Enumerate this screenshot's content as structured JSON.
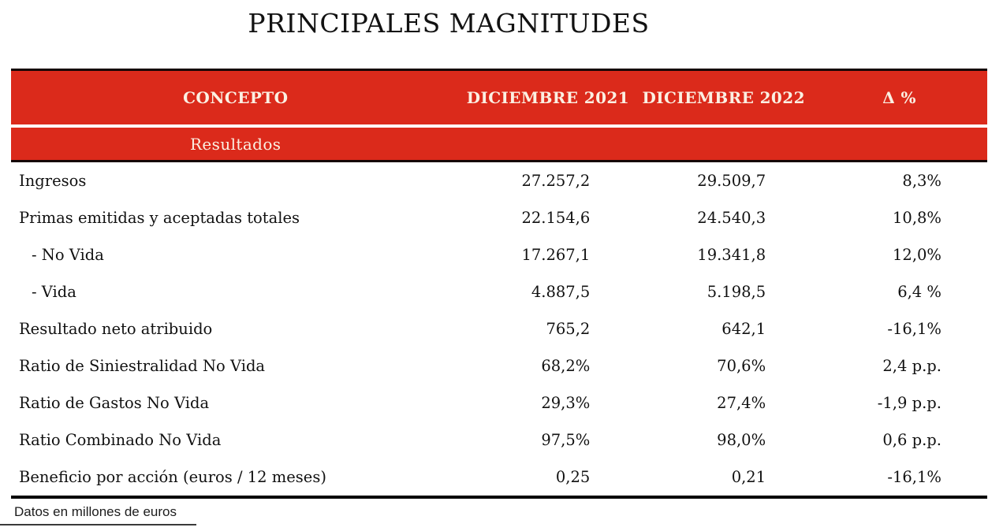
{
  "title": "PRINCIPALES MAGNITUDES",
  "colors": {
    "brand_red": "#DB2A1B",
    "header_text": "#FBF0E3",
    "border_black": "#000000"
  },
  "table": {
    "headers": {
      "concepto": "CONCEPTO",
      "dic2021": "DICIEMBRE 2021",
      "dic2022": "DICIEMBRE 2022",
      "delta": "Δ %"
    },
    "section_label": "Resultados",
    "rows": [
      {
        "concepto": "Ingresos",
        "indent": false,
        "dic2021": "27.257,2",
        "dic2022": "29.509,7",
        "delta": "8,3%"
      },
      {
        "concepto": "Primas emitidas y aceptadas totales",
        "indent": false,
        "dic2021": "22.154,6",
        "dic2022": "24.540,3",
        "delta": "10,8%"
      },
      {
        "concepto": "- No Vida",
        "indent": true,
        "dic2021": "17.267,1",
        "dic2022": "19.341,8",
        "delta": "12,0%"
      },
      {
        "concepto": "- Vida",
        "indent": true,
        "dic2021": "4.887,5",
        "dic2022": "5.198,5",
        "delta": "6,4 %"
      },
      {
        "concepto": "Resultado neto atribuido",
        "indent": false,
        "dic2021": "765,2",
        "dic2022": "642,1",
        "delta": "-16,1%"
      },
      {
        "concepto": "Ratio de Siniestralidad No Vida",
        "indent": false,
        "dic2021": "68,2%",
        "dic2022": "70,6%",
        "delta": "2,4 p.p."
      },
      {
        "concepto": "Ratio de Gastos No Vida",
        "indent": false,
        "dic2021": "29,3%",
        "dic2022": "27,4%",
        "delta": "-1,9 p.p."
      },
      {
        "concepto": "Ratio Combinado No Vida",
        "indent": false,
        "dic2021": "97,5%",
        "dic2022": "98,0%",
        "delta": "0,6 p.p."
      },
      {
        "concepto": "Beneficio por acción (euros / 12 meses)",
        "indent": false,
        "dic2021": "0,25",
        "dic2022": "0,21",
        "delta": "-16,1%"
      }
    ]
  },
  "footnote": "Datos en millones de euros"
}
